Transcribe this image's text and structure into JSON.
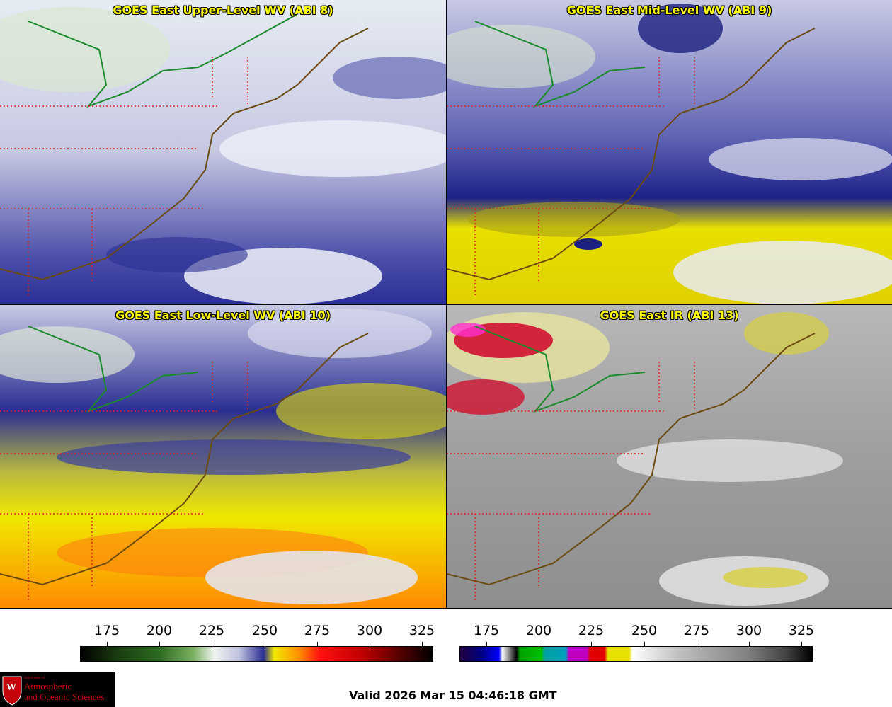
{
  "panels": {
    "upper": {
      "title": "GOES East Upper-Level WV (ABI 8)"
    },
    "mid": {
      "title": "GOES East Mid-Level WV (ABI 9)"
    },
    "low": {
      "title": "GOES East Low-Level WV (ABI 10)"
    },
    "ir": {
      "title": "GOES East IR (ABI 13)"
    }
  },
  "colorbars": {
    "wv": {
      "ticks": [
        "175",
        "200",
        "225",
        "250",
        "275",
        "300",
        "325"
      ]
    },
    "ir": {
      "ticks": [
        "175",
        "200",
        "225",
        "250",
        "275",
        "300",
        "325"
      ]
    }
  },
  "logo": {
    "small": "Department of",
    "line1": "Atmospheric",
    "line2": "and Oceanic Sciences",
    "emblem": "W"
  },
  "valid_time": "Valid 2026 Mar 15 04:46:18 GMT",
  "colors": {
    "border_state": "#e02020",
    "coast": "#6b4a10",
    "lakes_line": "#1a8a2a",
    "title_text": "#ffff00"
  }
}
